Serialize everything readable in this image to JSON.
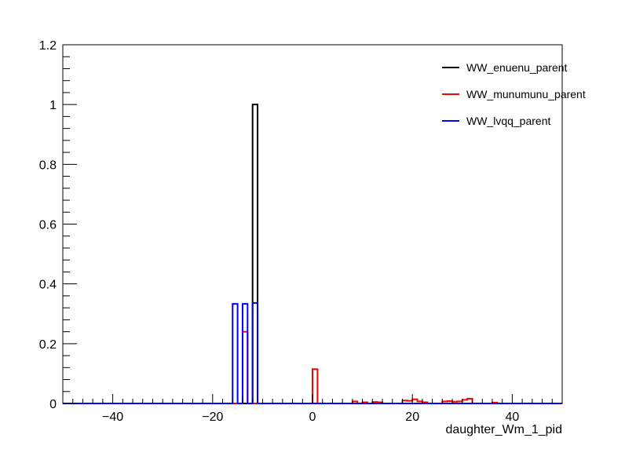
{
  "chart_data": {
    "type": "histogram",
    "title": "",
    "xlabel": "daughter_Wm_1_pid",
    "ylabel": "",
    "xlim": [
      -50,
      50
    ],
    "ylim": [
      0,
      1.2
    ],
    "x_ticks": [
      -40,
      -20,
      0,
      20,
      40
    ],
    "y_ticks": [
      0,
      0.2,
      0.4,
      0.6,
      0.8,
      1,
      1.2
    ],
    "x_tick_labels": [
      "−40",
      "−20",
      "0",
      "20",
      "40"
    ],
    "y_tick_labels": [
      "0",
      "0.2",
      "0.4",
      "0.6",
      "0.8",
      "1",
      "1.2"
    ],
    "grid": false,
    "legend_position": "top-right",
    "bin_width": 1,
    "series": [
      {
        "name": "WW_enuenu_parent",
        "color": "#000000",
        "bins": [
          [
            -12,
            1.0
          ]
        ]
      },
      {
        "name": "WW_munumunu_parent",
        "color": "#ff0000",
        "bins": [
          [
            -14,
            0.24
          ],
          [
            0,
            0.115
          ],
          [
            8,
            0.007
          ],
          [
            10,
            0.004
          ],
          [
            12,
            0.005
          ],
          [
            13,
            0.004
          ],
          [
            18,
            0.01
          ],
          [
            19,
            0.009
          ],
          [
            20,
            0.014
          ],
          [
            21,
            0.007
          ],
          [
            22,
            0.004
          ],
          [
            26,
            0.007
          ],
          [
            27,
            0.008
          ],
          [
            28,
            0.006
          ],
          [
            29,
            0.007
          ],
          [
            30,
            0.012
          ],
          [
            31,
            0.016
          ],
          [
            36,
            0.003
          ]
        ]
      },
      {
        "name": "WW_lvqq_parent",
        "color": "#0000ff",
        "bins": [
          [
            -16,
            0.333
          ],
          [
            -14,
            0.333
          ],
          [
            -12,
            0.336
          ]
        ]
      }
    ]
  }
}
